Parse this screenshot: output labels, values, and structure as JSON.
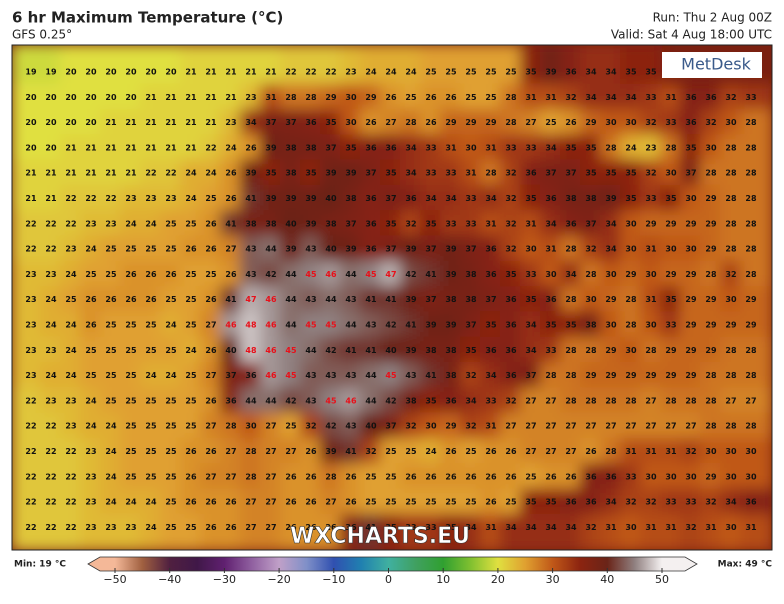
{
  "header": {
    "title": "6 hr Maximum Temperature (°C)",
    "model": "GFS 0.25°",
    "run": "Run: Thu 2 Aug 00Z",
    "valid": "Valid: Sat 4 Aug 18:00 UTC"
  },
  "logo": "MetDesk",
  "watermark": "WXCHARTS.EU",
  "grid": {
    "highlight_color": "#e8101a",
    "highlight_min": 45,
    "rows": [
      [
        19,
        19,
        20,
        20,
        20,
        20,
        20,
        20,
        21,
        21,
        21,
        21,
        21,
        22,
        22,
        22,
        23,
        24,
        24,
        24,
        25,
        25,
        25,
        25,
        25,
        35,
        39,
        36,
        34,
        34,
        35,
        35,
        null,
        null,
        null,
        null,
        null
      ],
      [
        20,
        20,
        20,
        20,
        20,
        20,
        21,
        21,
        21,
        21,
        21,
        23,
        31,
        28,
        28,
        29,
        30,
        29,
        26,
        25,
        26,
        26,
        25,
        25,
        28,
        31,
        31,
        32,
        34,
        34,
        34,
        33,
        31,
        36,
        36,
        32,
        33
      ],
      [
        20,
        20,
        20,
        20,
        21,
        21,
        21,
        21,
        21,
        21,
        23,
        34,
        37,
        37,
        36,
        35,
        30,
        26,
        27,
        28,
        26,
        29,
        29,
        29,
        28,
        27,
        25,
        26,
        29,
        30,
        30,
        32,
        33,
        36,
        32,
        30,
        28
      ],
      [
        20,
        20,
        21,
        21,
        21,
        21,
        21,
        21,
        21,
        22,
        24,
        26,
        39,
        38,
        38,
        37,
        35,
        36,
        36,
        34,
        33,
        31,
        30,
        31,
        33,
        33,
        34,
        35,
        35,
        28,
        24,
        23,
        28,
        35,
        30,
        28,
        28
      ],
      [
        21,
        21,
        21,
        21,
        21,
        21,
        22,
        22,
        24,
        24,
        26,
        39,
        35,
        38,
        35,
        39,
        39,
        37,
        35,
        34,
        33,
        33,
        31,
        28,
        32,
        36,
        37,
        37,
        35,
        35,
        35,
        32,
        30,
        37,
        28,
        28,
        28
      ],
      [
        21,
        21,
        22,
        22,
        22,
        23,
        23,
        23,
        24,
        25,
        26,
        41,
        39,
        39,
        39,
        40,
        38,
        36,
        37,
        36,
        34,
        34,
        33,
        34,
        32,
        35,
        36,
        38,
        38,
        39,
        35,
        33,
        35,
        30,
        29,
        28,
        28
      ],
      [
        22,
        22,
        22,
        23,
        23,
        24,
        24,
        25,
        25,
        26,
        41,
        38,
        38,
        40,
        39,
        38,
        37,
        36,
        35,
        32,
        35,
        33,
        33,
        31,
        32,
        31,
        34,
        36,
        37,
        34,
        30,
        29,
        29,
        29,
        29,
        28,
        28
      ],
      [
        22,
        22,
        23,
        24,
        25,
        25,
        25,
        25,
        26,
        26,
        27,
        43,
        44,
        39,
        43,
        40,
        39,
        36,
        37,
        39,
        37,
        39,
        37,
        36,
        32,
        30,
        31,
        28,
        32,
        34,
        30,
        31,
        30,
        30,
        29,
        28,
        28
      ],
      [
        23,
        23,
        24,
        25,
        25,
        26,
        26,
        26,
        25,
        25,
        26,
        43,
        42,
        44,
        45,
        46,
        44,
        45,
        47,
        42,
        41,
        39,
        38,
        36,
        35,
        33,
        30,
        34,
        28,
        30,
        29,
        30,
        29,
        29,
        28,
        32,
        28
      ],
      [
        23,
        24,
        25,
        26,
        26,
        26,
        26,
        25,
        25,
        26,
        41,
        47,
        46,
        44,
        43,
        44,
        43,
        41,
        41,
        39,
        37,
        38,
        38,
        37,
        36,
        35,
        36,
        28,
        30,
        29,
        28,
        31,
        35,
        29,
        29,
        30,
        29
      ],
      [
        23,
        24,
        24,
        26,
        25,
        25,
        25,
        24,
        25,
        27,
        46,
        48,
        46,
        44,
        45,
        45,
        44,
        43,
        42,
        41,
        39,
        39,
        37,
        35,
        36,
        34,
        35,
        35,
        38,
        30,
        28,
        30,
        33,
        29,
        29,
        29,
        29
      ],
      [
        23,
        23,
        24,
        25,
        25,
        25,
        25,
        25,
        24,
        26,
        40,
        48,
        46,
        45,
        44,
        42,
        41,
        41,
        40,
        39,
        38,
        38,
        35,
        36,
        36,
        34,
        33,
        28,
        28,
        29,
        30,
        28,
        29,
        29,
        29,
        28,
        28
      ],
      [
        23,
        24,
        24,
        25,
        25,
        25,
        24,
        24,
        25,
        27,
        37,
        36,
        46,
        45,
        43,
        43,
        43,
        44,
        45,
        43,
        41,
        38,
        32,
        34,
        36,
        37,
        28,
        28,
        29,
        29,
        29,
        29,
        29,
        29,
        28,
        28,
        28
      ],
      [
        22,
        23,
        23,
        24,
        25,
        25,
        25,
        25,
        25,
        26,
        36,
        44,
        44,
        42,
        43,
        45,
        46,
        44,
        42,
        38,
        35,
        36,
        34,
        33,
        32,
        27,
        27,
        28,
        28,
        28,
        28,
        27,
        28,
        28,
        28,
        27,
        27
      ],
      [
        22,
        22,
        23,
        24,
        24,
        25,
        25,
        25,
        25,
        27,
        28,
        30,
        27,
        25,
        32,
        42,
        43,
        40,
        37,
        32,
        30,
        29,
        32,
        31,
        27,
        27,
        27,
        27,
        27,
        27,
        27,
        27,
        27,
        27,
        28,
        28,
        28
      ],
      [
        22,
        22,
        22,
        23,
        24,
        25,
        25,
        25,
        26,
        26,
        27,
        28,
        27,
        27,
        26,
        39,
        41,
        32,
        25,
        25,
        24,
        26,
        25,
        26,
        26,
        27,
        27,
        27,
        26,
        28,
        31,
        31,
        31,
        32,
        30,
        30,
        30
      ],
      [
        22,
        22,
        22,
        23,
        24,
        25,
        25,
        25,
        26,
        27,
        27,
        28,
        27,
        26,
        26,
        28,
        26,
        25,
        25,
        26,
        26,
        26,
        26,
        26,
        26,
        25,
        26,
        26,
        36,
        36,
        33,
        30,
        30,
        30,
        29,
        30,
        30
      ],
      [
        22,
        22,
        22,
        23,
        24,
        24,
        24,
        25,
        26,
        26,
        26,
        27,
        27,
        26,
        26,
        27,
        26,
        25,
        25,
        25,
        25,
        25,
        25,
        26,
        25,
        35,
        35,
        36,
        36,
        34,
        32,
        32,
        33,
        33,
        32,
        34,
        36
      ],
      [
        22,
        22,
        22,
        23,
        23,
        23,
        24,
        25,
        25,
        26,
        26,
        27,
        27,
        26,
        26,
        26,
        36,
        41,
        35,
        33,
        33,
        35,
        34,
        31,
        34,
        34,
        34,
        34,
        32,
        31,
        30,
        31,
        31,
        32,
        31,
        30,
        31
      ]
    ]
  },
  "colorbar": {
    "min_label": "Min: 19 °C",
    "max_label": "Max: 49 °C",
    "range": [
      -50,
      50
    ],
    "ticks": [
      {
        "value": -50,
        "label": "−50"
      },
      {
        "value": -40,
        "label": "−40"
      },
      {
        "value": -30,
        "label": "−30"
      },
      {
        "value": -20,
        "label": "−20"
      },
      {
        "value": -10,
        "label": "−10"
      },
      0,
      10,
      20,
      30,
      40,
      50
    ],
    "colors": [
      "#f4b898",
      "#a06040",
      "#502040",
      "#401848",
      "#602070",
      "#9060a0",
      "#c0a0c8",
      "#8090c8",
      "#3050b0",
      "#2080b0",
      "#40b0a0",
      "#40a060",
      "#30a030",
      "#80c030",
      "#e0e040",
      "#e0a030",
      "#c05818",
      "#8c2410",
      "#6a2418",
      "#908080",
      "#f4f0f0"
    ]
  }
}
